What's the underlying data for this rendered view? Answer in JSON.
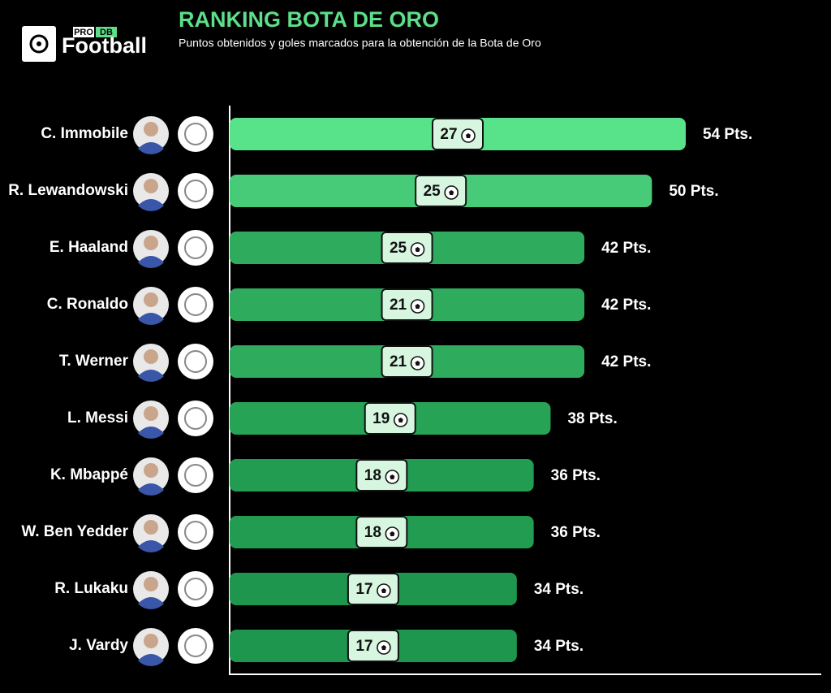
{
  "logo": {
    "badge": [
      "PRO",
      "DB"
    ],
    "main": "Football"
  },
  "chart_data": {
    "type": "bar",
    "orientation": "horizontal",
    "title": "RANKING BOTA DE ORO",
    "subtitle": "Puntos obtenidos y goles marcados para la obtención de la Bota de Oro",
    "categories": [
      "C. Immobile",
      "R. Lewandowski",
      "E. Haaland",
      "C. Ronaldo",
      "T. Werner",
      "L. Messi",
      "K. Mbappé",
      "W. Ben Yedder",
      "R. Lukaku",
      "J. Vardy"
    ],
    "values": [
      54,
      50,
      42,
      42,
      42,
      38,
      36,
      36,
      34,
      34
    ],
    "value_labels": [
      "54 Pts.",
      "50 Pts.",
      "42 Pts.",
      "42 Pts.",
      "42 Pts.",
      "38 Pts.",
      "36 Pts.",
      "36 Pts.",
      "34 Pts.",
      "34 Pts."
    ],
    "goals": [
      27,
      25,
      25,
      21,
      21,
      19,
      18,
      18,
      17,
      17
    ],
    "colors": [
      "#58e38b",
      "#48cb78",
      "#2eab5c",
      "#2eab5c",
      "#2eab5c",
      "#27a356",
      "#229c51",
      "#229c51",
      "#1e964d",
      "#1e964d"
    ]
  }
}
